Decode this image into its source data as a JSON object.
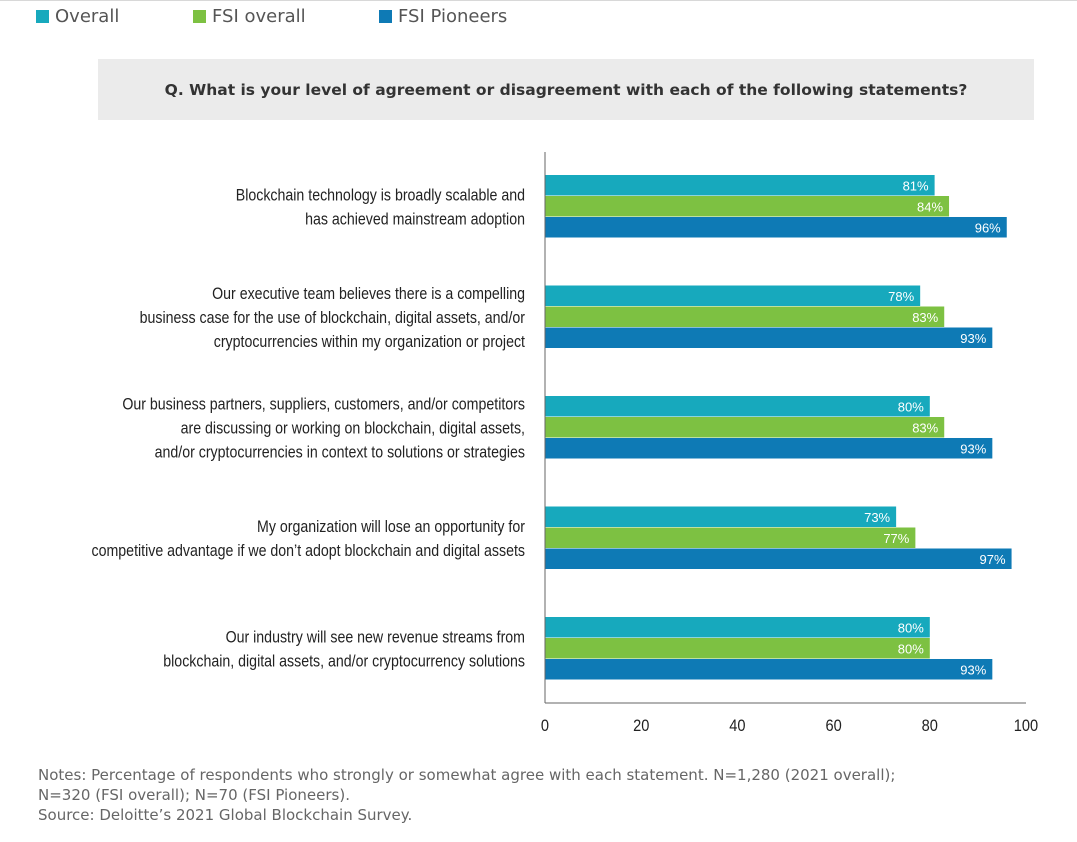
{
  "legend": [
    {
      "label": "Overall",
      "color": "#17a9bd"
    },
    {
      "label": "FSI overall",
      "color": "#7dc142"
    },
    {
      "label": "FSI Pioneers",
      "color": "#0e7ab5"
    }
  ],
  "question": "Q.   What is your level of agreement or disagreement with each of the following statements?",
  "chart_data": {
    "type": "bar",
    "orientation": "horizontal",
    "categories": [
      [
        "Blockchain technology is broadly scalable and",
        "has achieved mainstream adoption"
      ],
      [
        "Our executive team believes there is a compelling",
        "business case for the use of blockchain, digital assets, and/or",
        "cryptocurrencies within my organization or project"
      ],
      [
        "Our business partners, suppliers, customers, and/or competitors",
        "are discussing or working on blockchain, digital assets,",
        "and/or cryptocurrencies in context to solutions or strategies"
      ],
      [
        "My organization will lose an opportunity for",
        "competitive advantage if we don’t adopt blockchain and digital assets"
      ],
      [
        "Our industry will see new revenue streams from",
        "blockchain, digital assets, and/or cryptocurrency solutions"
      ]
    ],
    "series": [
      {
        "name": "Overall",
        "color": "#17a9bd",
        "values": [
          81,
          78,
          80,
          73,
          80
        ],
        "labels": [
          "81%",
          "78%",
          "80%",
          "73%",
          "80%"
        ]
      },
      {
        "name": "FSI overall",
        "color": "#7dc142",
        "values": [
          84,
          83,
          83,
          77,
          80
        ],
        "labels": [
          "84%",
          "83%",
          "83%",
          "77%",
          "80%"
        ]
      },
      {
        "name": "FSI Pioneers",
        "color": "#0e7ab5",
        "values": [
          96,
          93,
          93,
          97,
          93
        ],
        "labels": [
          "96%",
          "93%",
          "93%",
          "97%",
          "93%"
        ]
      }
    ],
    "xlim": [
      0,
      100
    ],
    "xticks": [
      "0",
      "20",
      "40",
      "60",
      "80",
      "100"
    ],
    "grid": false,
    "legend_position": "top-left"
  },
  "notes": [
    "Notes: Percentage of respondents who strongly or somewhat agree with each statement. N=1,280 (2021 overall);",
    "N=320 (FSI overall); N=70 (FSI Pioneers).",
    "Source: Deloitte’s 2021 Global Blockchain Survey."
  ]
}
